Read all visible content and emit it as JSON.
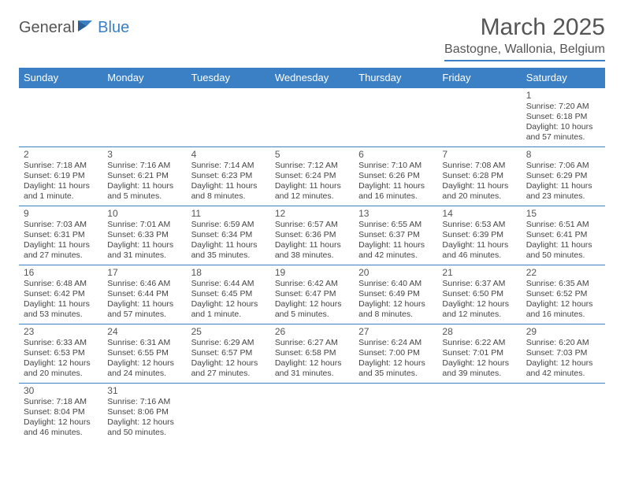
{
  "logo": {
    "general": "General",
    "blue": "Blue"
  },
  "title": "March 2025",
  "location": "Bastogne, Wallonia, Belgium",
  "colors": {
    "accent": "#3b7fc4",
    "text": "#555555",
    "bg": "#ffffff"
  },
  "dayHeaders": [
    "Sunday",
    "Monday",
    "Tuesday",
    "Wednesday",
    "Thursday",
    "Friday",
    "Saturday"
  ],
  "weeks": [
    [
      null,
      null,
      null,
      null,
      null,
      null,
      {
        "n": "1",
        "sr": "Sunrise: 7:20 AM",
        "ss": "Sunset: 6:18 PM",
        "dl": "Daylight: 10 hours and 57 minutes."
      }
    ],
    [
      {
        "n": "2",
        "sr": "Sunrise: 7:18 AM",
        "ss": "Sunset: 6:19 PM",
        "dl": "Daylight: 11 hours and 1 minute."
      },
      {
        "n": "3",
        "sr": "Sunrise: 7:16 AM",
        "ss": "Sunset: 6:21 PM",
        "dl": "Daylight: 11 hours and 5 minutes."
      },
      {
        "n": "4",
        "sr": "Sunrise: 7:14 AM",
        "ss": "Sunset: 6:23 PM",
        "dl": "Daylight: 11 hours and 8 minutes."
      },
      {
        "n": "5",
        "sr": "Sunrise: 7:12 AM",
        "ss": "Sunset: 6:24 PM",
        "dl": "Daylight: 11 hours and 12 minutes."
      },
      {
        "n": "6",
        "sr": "Sunrise: 7:10 AM",
        "ss": "Sunset: 6:26 PM",
        "dl": "Daylight: 11 hours and 16 minutes."
      },
      {
        "n": "7",
        "sr": "Sunrise: 7:08 AM",
        "ss": "Sunset: 6:28 PM",
        "dl": "Daylight: 11 hours and 20 minutes."
      },
      {
        "n": "8",
        "sr": "Sunrise: 7:06 AM",
        "ss": "Sunset: 6:29 PM",
        "dl": "Daylight: 11 hours and 23 minutes."
      }
    ],
    [
      {
        "n": "9",
        "sr": "Sunrise: 7:03 AM",
        "ss": "Sunset: 6:31 PM",
        "dl": "Daylight: 11 hours and 27 minutes."
      },
      {
        "n": "10",
        "sr": "Sunrise: 7:01 AM",
        "ss": "Sunset: 6:33 PM",
        "dl": "Daylight: 11 hours and 31 minutes."
      },
      {
        "n": "11",
        "sr": "Sunrise: 6:59 AM",
        "ss": "Sunset: 6:34 PM",
        "dl": "Daylight: 11 hours and 35 minutes."
      },
      {
        "n": "12",
        "sr": "Sunrise: 6:57 AM",
        "ss": "Sunset: 6:36 PM",
        "dl": "Daylight: 11 hours and 38 minutes."
      },
      {
        "n": "13",
        "sr": "Sunrise: 6:55 AM",
        "ss": "Sunset: 6:37 PM",
        "dl": "Daylight: 11 hours and 42 minutes."
      },
      {
        "n": "14",
        "sr": "Sunrise: 6:53 AM",
        "ss": "Sunset: 6:39 PM",
        "dl": "Daylight: 11 hours and 46 minutes."
      },
      {
        "n": "15",
        "sr": "Sunrise: 6:51 AM",
        "ss": "Sunset: 6:41 PM",
        "dl": "Daylight: 11 hours and 50 minutes."
      }
    ],
    [
      {
        "n": "16",
        "sr": "Sunrise: 6:48 AM",
        "ss": "Sunset: 6:42 PM",
        "dl": "Daylight: 11 hours and 53 minutes."
      },
      {
        "n": "17",
        "sr": "Sunrise: 6:46 AM",
        "ss": "Sunset: 6:44 PM",
        "dl": "Daylight: 11 hours and 57 minutes."
      },
      {
        "n": "18",
        "sr": "Sunrise: 6:44 AM",
        "ss": "Sunset: 6:45 PM",
        "dl": "Daylight: 12 hours and 1 minute."
      },
      {
        "n": "19",
        "sr": "Sunrise: 6:42 AM",
        "ss": "Sunset: 6:47 PM",
        "dl": "Daylight: 12 hours and 5 minutes."
      },
      {
        "n": "20",
        "sr": "Sunrise: 6:40 AM",
        "ss": "Sunset: 6:49 PM",
        "dl": "Daylight: 12 hours and 8 minutes."
      },
      {
        "n": "21",
        "sr": "Sunrise: 6:37 AM",
        "ss": "Sunset: 6:50 PM",
        "dl": "Daylight: 12 hours and 12 minutes."
      },
      {
        "n": "22",
        "sr": "Sunrise: 6:35 AM",
        "ss": "Sunset: 6:52 PM",
        "dl": "Daylight: 12 hours and 16 minutes."
      }
    ],
    [
      {
        "n": "23",
        "sr": "Sunrise: 6:33 AM",
        "ss": "Sunset: 6:53 PM",
        "dl": "Daylight: 12 hours and 20 minutes."
      },
      {
        "n": "24",
        "sr": "Sunrise: 6:31 AM",
        "ss": "Sunset: 6:55 PM",
        "dl": "Daylight: 12 hours and 24 minutes."
      },
      {
        "n": "25",
        "sr": "Sunrise: 6:29 AM",
        "ss": "Sunset: 6:57 PM",
        "dl": "Daylight: 12 hours and 27 minutes."
      },
      {
        "n": "26",
        "sr": "Sunrise: 6:27 AM",
        "ss": "Sunset: 6:58 PM",
        "dl": "Daylight: 12 hours and 31 minutes."
      },
      {
        "n": "27",
        "sr": "Sunrise: 6:24 AM",
        "ss": "Sunset: 7:00 PM",
        "dl": "Daylight: 12 hours and 35 minutes."
      },
      {
        "n": "28",
        "sr": "Sunrise: 6:22 AM",
        "ss": "Sunset: 7:01 PM",
        "dl": "Daylight: 12 hours and 39 minutes."
      },
      {
        "n": "29",
        "sr": "Sunrise: 6:20 AM",
        "ss": "Sunset: 7:03 PM",
        "dl": "Daylight: 12 hours and 42 minutes."
      }
    ],
    [
      {
        "n": "30",
        "sr": "Sunrise: 7:18 AM",
        "ss": "Sunset: 8:04 PM",
        "dl": "Daylight: 12 hours and 46 minutes."
      },
      {
        "n": "31",
        "sr": "Sunrise: 7:16 AM",
        "ss": "Sunset: 8:06 PM",
        "dl": "Daylight: 12 hours and 50 minutes."
      },
      null,
      null,
      null,
      null,
      null
    ]
  ]
}
